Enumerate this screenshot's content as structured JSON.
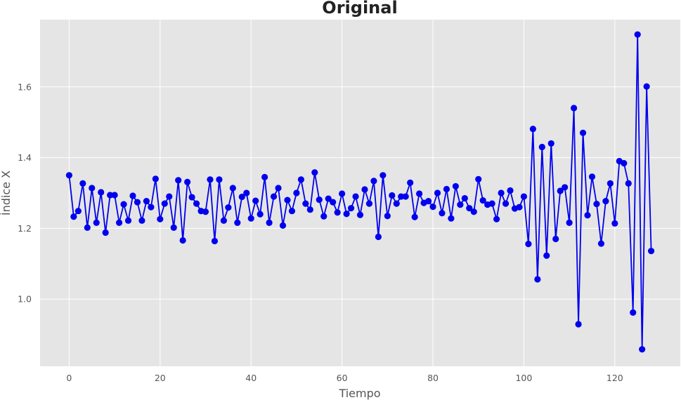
{
  "chart_data": {
    "type": "line",
    "title": "Original",
    "xlabel": "Tiempo",
    "ylabel": "Índice X",
    "xlim": [
      -6.4,
      134.4
    ],
    "ylim": [
      0.81,
      1.79
    ],
    "x_ticks": [
      0,
      20,
      40,
      60,
      80,
      100,
      120
    ],
    "x_tick_labels": [
      "0",
      "20",
      "40",
      "60",
      "80",
      "100",
      "120"
    ],
    "y_ticks": [
      1.0,
      1.2,
      1.4,
      1.6
    ],
    "y_tick_labels": [
      "1.0",
      "1.2",
      "1.4",
      "1.6"
    ],
    "grid": true,
    "background": "#e5e5e5",
    "grid_color": "#ffffff",
    "series": [
      {
        "color": "#0000ee",
        "marker": "circle",
        "x": [
          0,
          1,
          2,
          3,
          4,
          5,
          6,
          7,
          8,
          9,
          10,
          11,
          12,
          13,
          14,
          15,
          16,
          17,
          18,
          19,
          20,
          21,
          22,
          23,
          24,
          25,
          26,
          27,
          28,
          29,
          30,
          31,
          32,
          33,
          34,
          35,
          36,
          37,
          38,
          39,
          40,
          41,
          42,
          43,
          44,
          45,
          46,
          47,
          48,
          49,
          50,
          51,
          52,
          53,
          54,
          55,
          56,
          57,
          58,
          59,
          60,
          61,
          62,
          63,
          64,
          65,
          66,
          67,
          68,
          69,
          70,
          71,
          72,
          73,
          74,
          75,
          76,
          77,
          78,
          79,
          80,
          81,
          82,
          83,
          84,
          85,
          86,
          87,
          88,
          89,
          90,
          91,
          92,
          93,
          94,
          95,
          96,
          97,
          98,
          99,
          100,
          101,
          102,
          103,
          104,
          105,
          106,
          107,
          108,
          109,
          110,
          111,
          112,
          113,
          114,
          115,
          116,
          117,
          118,
          119,
          120,
          121,
          122,
          123,
          124,
          125,
          126,
          127,
          128
        ],
        "values": [
          1.35,
          1.233,
          1.249,
          1.327,
          1.202,
          1.314,
          1.216,
          1.302,
          1.188,
          1.294,
          1.294,
          1.216,
          1.268,
          1.222,
          1.292,
          1.274,
          1.222,
          1.277,
          1.26,
          1.34,
          1.226,
          1.27,
          1.29,
          1.202,
          1.336,
          1.166,
          1.331,
          1.288,
          1.27,
          1.249,
          1.247,
          1.338,
          1.164,
          1.338,
          1.222,
          1.259,
          1.314,
          1.216,
          1.289,
          1.3,
          1.228,
          1.278,
          1.24,
          1.345,
          1.216,
          1.29,
          1.314,
          1.208,
          1.28,
          1.249,
          1.3,
          1.338,
          1.27,
          1.253,
          1.358,
          1.281,
          1.234,
          1.284,
          1.274,
          1.245,
          1.298,
          1.241,
          1.257,
          1.29,
          1.238,
          1.31,
          1.27,
          1.334,
          1.176,
          1.35,
          1.235,
          1.293,
          1.27,
          1.29,
          1.29,
          1.329,
          1.232,
          1.298,
          1.272,
          1.277,
          1.261,
          1.3,
          1.243,
          1.311,
          1.228,
          1.319,
          1.267,
          1.285,
          1.257,
          1.247,
          1.339,
          1.279,
          1.267,
          1.27,
          1.226,
          1.3,
          1.27,
          1.307,
          1.256,
          1.26,
          1.29,
          1.156,
          1.481,
          1.056,
          1.43,
          1.123,
          1.44,
          1.17,
          1.306,
          1.316,
          1.216,
          1.54,
          0.929,
          1.47,
          1.237,
          1.346,
          1.269,
          1.157,
          1.277,
          1.327,
          1.214,
          1.39,
          1.384,
          1.327,
          0.962,
          1.748,
          0.858,
          1.601,
          1.136
        ]
      }
    ]
  }
}
